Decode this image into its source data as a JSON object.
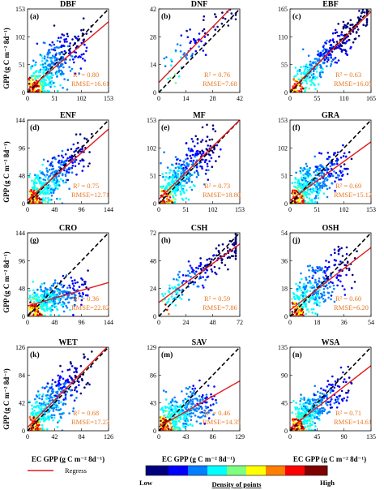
{
  "figure": {
    "y_axis_label": "GPP (g C m⁻² 8d⁻¹)",
    "x_axis_label": "EC GPP (g C m⁻² 8d⁻¹)",
    "legend": {
      "regress_label": "Regress",
      "regress_color": "#e31a1c",
      "one_to_one_color": "#000000"
    },
    "colorbar": {
      "low_label": "Low",
      "high_label": "High",
      "title": "Density of points",
      "colors": [
        "#00007f",
        "#0000ff",
        "#007fff",
        "#00ffff",
        "#7fff7f",
        "#ffff00",
        "#ff7f00",
        "#ff0000",
        "#7f0000"
      ]
    }
  },
  "chart_data": [
    {
      "type": "scatter",
      "panel": "(a)",
      "title": "DBF",
      "max": 153,
      "ticks": [
        0,
        51,
        102,
        153
      ],
      "r2": "0.80",
      "rmse": "16.61",
      "slope": 0.82,
      "intercept": 4,
      "spread": 0.22,
      "xmean": 0.3,
      "n": 420
    },
    {
      "type": "scatter",
      "panel": "(b)",
      "title": "DNF",
      "max": 42,
      "ticks": [
        0,
        14,
        28,
        42
      ],
      "r2": "0.76",
      "rmse": "7.68",
      "slope": 1.0,
      "intercept": 5,
      "spread": 0.16,
      "xmean": 0.5,
      "n": 80
    },
    {
      "type": "scatter",
      "panel": "(c)",
      "title": "EBF",
      "max": 165,
      "ticks": [
        0,
        55,
        110,
        165
      ],
      "r2": "0.63",
      "rmse": "16.05",
      "slope": 0.95,
      "intercept": 3,
      "spread": 0.14,
      "xmean": 0.45,
      "n": 380
    },
    {
      "type": "scatter",
      "panel": "(d)",
      "title": "ENF",
      "max": 144,
      "ticks": [
        0,
        48,
        96,
        144
      ],
      "r2": "0.75",
      "rmse": "12.71",
      "slope": 0.85,
      "intercept": 6,
      "spread": 0.18,
      "xmean": 0.3,
      "n": 400
    },
    {
      "type": "scatter",
      "panel": "(e)",
      "title": "MF",
      "max": 153,
      "ticks": [
        0,
        51,
        102,
        153
      ],
      "r2": "0.73",
      "rmse": "18.80",
      "slope": 0.95,
      "intercept": 8,
      "spread": 0.2,
      "xmean": 0.3,
      "n": 400
    },
    {
      "type": "scatter",
      "panel": "(f)",
      "title": "GRA",
      "max": 153,
      "ticks": [
        0,
        51,
        102,
        153
      ],
      "r2": "0.69",
      "rmse": "15.12",
      "slope": 0.7,
      "intercept": 6,
      "spread": 0.18,
      "xmean": 0.3,
      "n": 420
    },
    {
      "type": "scatter",
      "panel": "(g)",
      "title": "CRO",
      "max": 144,
      "ticks": [
        0,
        48,
        96,
        144
      ],
      "r2": "0.36",
      "rmse": "22.82",
      "slope": 0.28,
      "intercept": 18,
      "spread": 0.13,
      "xmean": 0.3,
      "n": 380
    },
    {
      "type": "scatter",
      "panel": "(h)",
      "title": "CSH",
      "max": 72,
      "ticks": [
        0,
        24,
        48,
        72
      ],
      "r2": "0.59",
      "rmse": "7.86",
      "slope": 0.7,
      "intercept": 12,
      "spread": 0.12,
      "xmean": 0.55,
      "n": 200
    },
    {
      "type": "scatter",
      "panel": "(j)",
      "title": "OSH",
      "max": 54,
      "ticks": [
        0,
        18,
        36,
        54
      ],
      "r2": "0.60",
      "rmse": "6.20",
      "slope": 0.75,
      "intercept": 4,
      "spread": 0.2,
      "xmean": 0.35,
      "n": 350
    },
    {
      "type": "scatter",
      "panel": "(k)",
      "title": "WET",
      "max": 126,
      "ticks": [
        0,
        42,
        84,
        126
      ],
      "r2": "0.68",
      "rmse": "17.23",
      "slope": 0.98,
      "intercept": 5,
      "spread": 0.2,
      "xmean": 0.3,
      "n": 400
    },
    {
      "type": "scatter",
      "panel": "(m)",
      "title": "SAV",
      "max": 129,
      "ticks": [
        0,
        43,
        86,
        129
      ],
      "r2": "0.46",
      "rmse": "14.35",
      "slope": 0.55,
      "intercept": 6,
      "spread": 0.16,
      "xmean": 0.28,
      "n": 400
    },
    {
      "type": "scatter",
      "panel": "(n)",
      "title": "WSA",
      "max": 135,
      "ticks": [
        0,
        45,
        90,
        135
      ],
      "r2": "0.71",
      "rmse": "14.61",
      "slope": 0.75,
      "intercept": 4,
      "spread": 0.16,
      "xmean": 0.3,
      "n": 400
    }
  ]
}
